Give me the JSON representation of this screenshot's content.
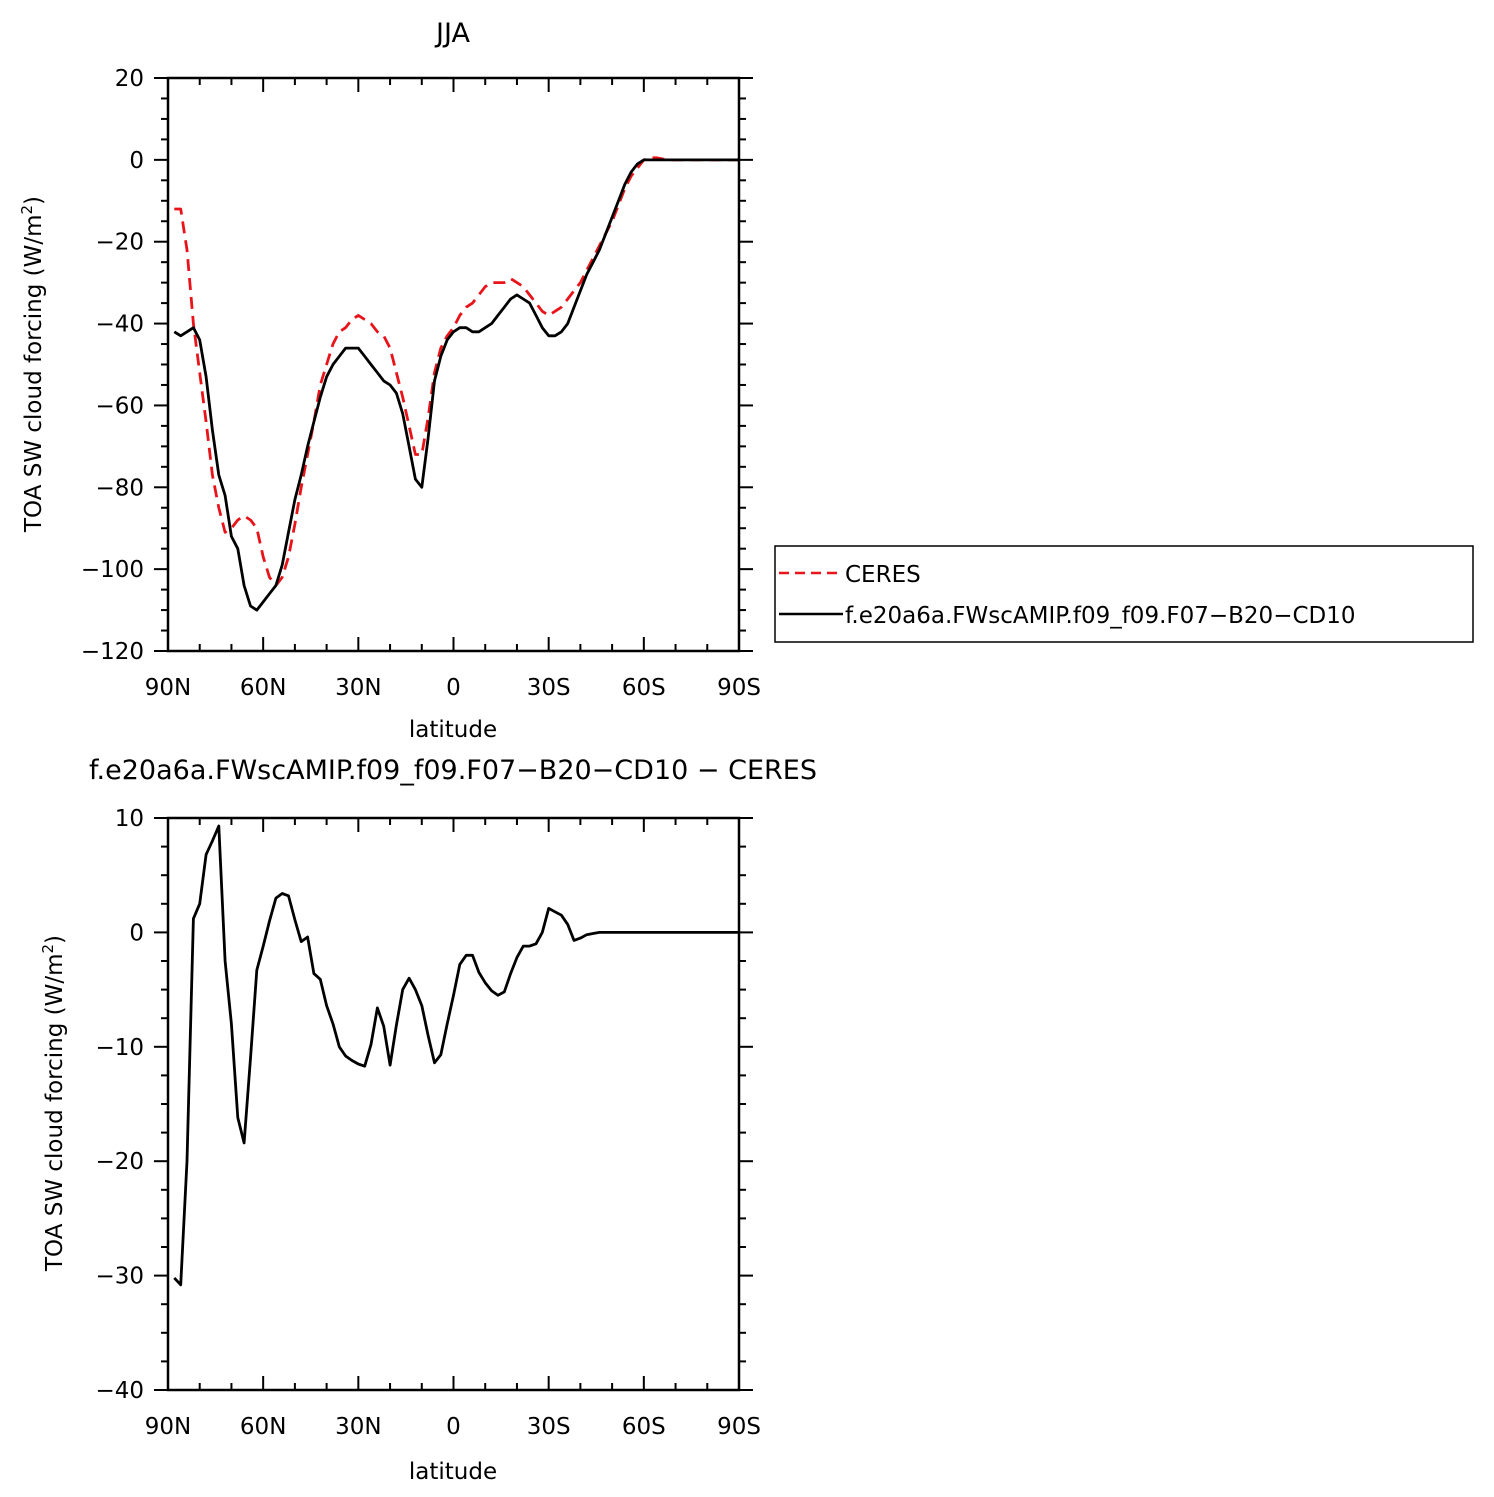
{
  "chart_data": [
    {
      "type": "line",
      "title": "JJA",
      "xlabel": "latitude",
      "ylabel": "TOA SW cloud forcing (W/m²)",
      "ylabel_parts": {
        "main": "TOA SW cloud forcing (W/m",
        "sup": "2",
        "end": ")"
      },
      "xlim": [
        -90,
        90
      ],
      "ylim": [
        -120,
        20
      ],
      "x_ticks": [
        -90,
        -60,
        -30,
        0,
        30,
        60,
        90
      ],
      "x_tick_labels": [
        "90N",
        "60N",
        "30N",
        "0",
        "30S",
        "60S",
        "90S"
      ],
      "y_ticks": [
        -120,
        -100,
        -80,
        -60,
        -40,
        -20,
        0,
        20
      ],
      "y_tick_labels": [
        "−120",
        "−100",
        "−80",
        "−60",
        "−40",
        "−20",
        "0",
        "20"
      ],
      "legend": "right",
      "series": [
        {
          "name": "CERES",
          "color": "#e8141a",
          "dash": "dashed",
          "x": [
            -88,
            -86,
            -84,
            -82,
            -80,
            -78,
            -76,
            -74,
            -72,
            -70,
            -68,
            -66,
            -64,
            -62,
            -60,
            -58,
            -56,
            -54,
            -52,
            -50,
            -48,
            -46,
            -44,
            -42,
            -40,
            -38,
            -36,
            -34,
            -32,
            -30,
            -28,
            -26,
            -24,
            -22,
            -20,
            -18,
            -16,
            -14,
            -12,
            -10,
            -8,
            -6,
            -4,
            -2,
            0,
            2,
            4,
            6,
            8,
            10,
            12,
            14,
            16,
            18,
            20,
            22,
            24,
            26,
            28,
            30,
            32,
            34,
            36,
            38,
            40,
            42,
            44,
            46,
            48,
            50,
            52,
            54,
            56,
            58,
            60,
            62,
            64,
            66,
            68,
            70,
            72,
            74,
            76,
            78,
            80,
            82,
            84,
            86,
            88,
            90
          ],
          "y": [
            -12,
            -12,
            -22,
            -40,
            -52,
            -64,
            -77,
            -85,
            -91,
            -90,
            -88,
            -87,
            -88,
            -90,
            -97,
            -102,
            -104,
            -102,
            -97,
            -89,
            -80,
            -72,
            -64,
            -55,
            -50,
            -45,
            -42,
            -41,
            -39,
            -38,
            -39,
            -40,
            -42,
            -43,
            -46,
            -52,
            -58,
            -65,
            -72,
            -72,
            -63,
            -52,
            -46,
            -43,
            -41,
            -38,
            -36,
            -35,
            -33,
            -31,
            -30,
            -30,
            -30,
            -29,
            -30,
            -31,
            -33,
            -35,
            -37,
            -38,
            -37,
            -36,
            -34,
            -32,
            -30,
            -27,
            -24,
            -21,
            -18,
            -15,
            -11,
            -7,
            -4,
            -2,
            0,
            0.5,
            0.5,
            0.2,
            0,
            0,
            0,
            0,
            0,
            0,
            0,
            0,
            0,
            0,
            0,
            0
          ]
        },
        {
          "name": "f.e20a6a.FWscAMIP.f09_f09.F07−B20−CD10",
          "color": "#000000",
          "dash": "solid",
          "x": [
            -88,
            -86,
            -84,
            -82,
            -80,
            -78,
            -76,
            -74,
            -72,
            -70,
            -68,
            -66,
            -64,
            -62,
            -60,
            -58,
            -56,
            -54,
            -52,
            -50,
            -48,
            -46,
            -44,
            -42,
            -40,
            -38,
            -36,
            -34,
            -32,
            -30,
            -28,
            -26,
            -24,
            -22,
            -20,
            -18,
            -16,
            -14,
            -12,
            -10,
            -8,
            -6,
            -4,
            -2,
            0,
            2,
            4,
            6,
            8,
            10,
            12,
            14,
            16,
            18,
            20,
            22,
            24,
            26,
            28,
            30,
            32,
            34,
            36,
            38,
            40,
            42,
            44,
            46,
            48,
            50,
            52,
            54,
            56,
            58,
            60,
            62,
            64,
            66,
            68,
            70,
            72,
            74,
            76,
            78,
            80,
            82,
            84,
            86,
            88,
            90
          ],
          "y": [
            -42,
            -43,
            -42,
            -41,
            -44,
            -53,
            -66,
            -77,
            -82,
            -92,
            -95,
            -104,
            -109,
            -110,
            -108,
            -106,
            -104,
            -99,
            -91,
            -83,
            -77,
            -70,
            -64,
            -58,
            -53,
            -50,
            -48,
            -46,
            -46,
            -46,
            -48,
            -50,
            -52,
            -54,
            -55,
            -57,
            -62,
            -70,
            -78,
            -80,
            -68,
            -54,
            -48,
            -44,
            -42,
            -41,
            -41,
            -42,
            -42,
            -41,
            -40,
            -38,
            -36,
            -34,
            -33,
            -34,
            -35,
            -38,
            -41,
            -43,
            -43,
            -42,
            -40,
            -36,
            -32,
            -28,
            -25,
            -22,
            -18,
            -14,
            -10,
            -6,
            -3,
            -1,
            0,
            0,
            0,
            0,
            0,
            0,
            0,
            0,
            0,
            0,
            0,
            0,
            0,
            0,
            0,
            0
          ]
        }
      ]
    },
    {
      "type": "line",
      "title": "f.e20a6a.FWscAMIP.f09_f09.F07−B20−CD10 − CERES",
      "xlabel": "latitude",
      "ylabel": "TOA SW cloud forcing (W/m²)",
      "ylabel_parts": {
        "main": "TOA SW cloud forcing (W/m",
        "sup": "2",
        "end": ")"
      },
      "xlim": [
        -90,
        90
      ],
      "ylim": [
        -40,
        10
      ],
      "x_ticks": [
        -90,
        -60,
        -30,
        0,
        30,
        60,
        90
      ],
      "x_tick_labels": [
        "90N",
        "60N",
        "30N",
        "0",
        "30S",
        "60S",
        "90S"
      ],
      "y_ticks": [
        -40,
        -30,
        -20,
        -10,
        0,
        10
      ],
      "y_tick_labels": [
        "−40",
        "−30",
        "−20",
        "−10",
        "0",
        "10"
      ],
      "series": [
        {
          "color": "#000000",
          "dash": "solid",
          "x": [
            -88,
            -86,
            -84,
            -82,
            -80,
            -78,
            -76,
            -74,
            -72,
            -70,
            -68,
            -66,
            -64,
            -62,
            -60,
            -58,
            -56,
            -54,
            -52,
            -50,
            -48,
            -46,
            -44,
            -42,
            -40,
            -38,
            -36,
            -34,
            -32,
            -30,
            -28,
            -26,
            -24,
            -22,
            -20,
            -18,
            -16,
            -14,
            -12,
            -10,
            -8,
            -6,
            -4,
            -2,
            0,
            2,
            4,
            6,
            8,
            10,
            12,
            14,
            16,
            18,
            20,
            22,
            24,
            26,
            28,
            30,
            32,
            34,
            36,
            38,
            40,
            42,
            44,
            46,
            48,
            50,
            52,
            54,
            56,
            58,
            60,
            62,
            64,
            66,
            68,
            70,
            72,
            74,
            76,
            78,
            80,
            82,
            84,
            86,
            88,
            90
          ],
          "y": [
            -30.2,
            -30.8,
            -20,
            1.2,
            2.5,
            6.8,
            8,
            9.3,
            -2.5,
            -8,
            -16.2,
            -18.4,
            -11,
            -3.3,
            -1.2,
            1,
            3,
            3.4,
            3.2,
            1.1,
            -0.8,
            -0.4,
            -3.6,
            -4.1,
            -6.4,
            -8,
            -10,
            -10.8,
            -11.2,
            -11.5,
            -11.7,
            -9.8,
            -6.6,
            -8.2,
            -11.6,
            -8.1,
            -5,
            -4,
            -5,
            -6.4,
            -9,
            -11.4,
            -10.7,
            -8,
            -5.5,
            -2.8,
            -2,
            -2,
            -3.5,
            -4.4,
            -5.1,
            -5.5,
            -5.2,
            -3.6,
            -2.2,
            -1.2,
            -1.2,
            -1,
            0,
            2.1,
            1.8,
            1.5,
            0.7,
            -0.7,
            -0.5,
            -0.2,
            -0.1,
            0,
            0,
            0,
            0,
            0,
            0,
            0,
            0,
            0,
            0,
            0,
            0,
            0,
            0,
            0,
            0,
            0,
            0,
            0,
            0,
            0,
            0,
            0
          ]
        }
      ]
    }
  ]
}
